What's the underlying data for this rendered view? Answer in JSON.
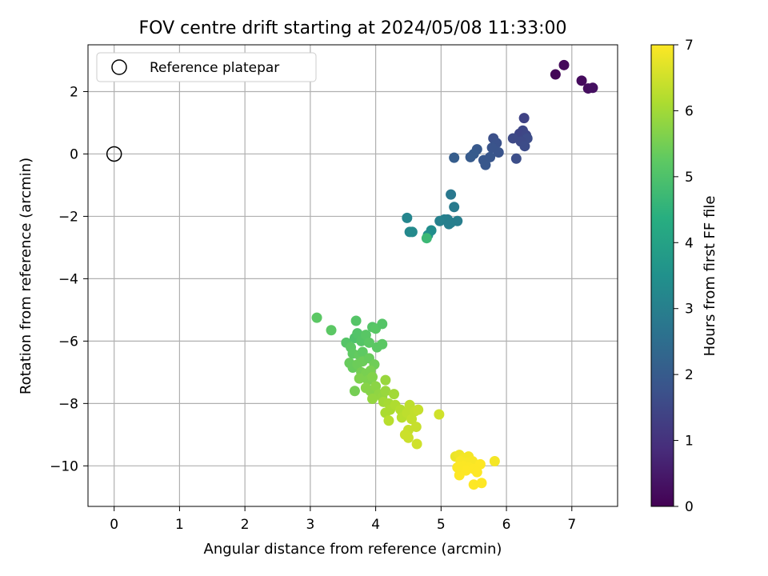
{
  "chart_data": {
    "type": "scatter",
    "title": "FOV centre drift starting at 2024/05/08 11:33:00",
    "xlabel": "Angular distance from reference (arcmin)",
    "ylabel": "Rotation from reference (arcmin)",
    "xlim": [
      -0.4,
      7.7
    ],
    "ylim": [
      -11.3,
      3.5
    ],
    "x_ticks": [
      0,
      1,
      2,
      3,
      4,
      5,
      6,
      7
    ],
    "y_ticks": [
      -10,
      -8,
      -6,
      -4,
      -2,
      0,
      2
    ],
    "grid": true,
    "colormap": "viridis",
    "colorbar_label": "Hours from first FF file",
    "colorbar_range": [
      0,
      7
    ],
    "colorbar_ticks": [
      0,
      1,
      2,
      3,
      4,
      5,
      6,
      7
    ],
    "legend": {
      "placement": "top-left",
      "entries": [
        "Reference platepar"
      ]
    },
    "reference_point": {
      "x": 0,
      "y": 0
    },
    "points": [
      {
        "x": 6.75,
        "y": 2.55,
        "c": 0.1
      },
      {
        "x": 6.88,
        "y": 2.85,
        "c": 0.15
      },
      {
        "x": 7.15,
        "y": 2.35,
        "c": 0.2
      },
      {
        "x": 7.25,
        "y": 2.1,
        "c": 0.25
      },
      {
        "x": 7.32,
        "y": 2.12,
        "c": 0.3
      },
      {
        "x": 6.27,
        "y": 1.15,
        "c": 1.4
      },
      {
        "x": 6.25,
        "y": 0.75,
        "c": 1.5
      },
      {
        "x": 6.2,
        "y": 0.65,
        "c": 1.45
      },
      {
        "x": 6.1,
        "y": 0.5,
        "c": 1.55
      },
      {
        "x": 6.3,
        "y": 0.6,
        "c": 1.5
      },
      {
        "x": 6.32,
        "y": 0.5,
        "c": 1.6
      },
      {
        "x": 6.22,
        "y": 0.4,
        "c": 1.55
      },
      {
        "x": 6.28,
        "y": 0.25,
        "c": 1.6
      },
      {
        "x": 6.15,
        "y": -0.15,
        "c": 1.65
      },
      {
        "x": 5.8,
        "y": 0.5,
        "c": 1.7
      },
      {
        "x": 5.85,
        "y": 0.35,
        "c": 1.75
      },
      {
        "x": 5.78,
        "y": 0.2,
        "c": 1.8
      },
      {
        "x": 5.88,
        "y": 0.05,
        "c": 1.8
      },
      {
        "x": 5.75,
        "y": -0.1,
        "c": 1.85
      },
      {
        "x": 5.65,
        "y": -0.2,
        "c": 1.9
      },
      {
        "x": 5.68,
        "y": -0.35,
        "c": 1.9
      },
      {
        "x": 5.55,
        "y": 0.15,
        "c": 1.95
      },
      {
        "x": 5.5,
        "y": 0.0,
        "c": 2.0
      },
      {
        "x": 5.45,
        "y": -0.1,
        "c": 2.0
      },
      {
        "x": 5.2,
        "y": -0.12,
        "c": 2.05
      },
      {
        "x": 5.15,
        "y": -1.3,
        "c": 2.8
      },
      {
        "x": 5.2,
        "y": -1.7,
        "c": 2.85
      },
      {
        "x": 5.1,
        "y": -2.1,
        "c": 2.9
      },
      {
        "x": 5.15,
        "y": -2.2,
        "c": 2.95
      },
      {
        "x": 5.25,
        "y": -2.15,
        "c": 2.95
      },
      {
        "x": 5.05,
        "y": -2.1,
        "c": 3.0
      },
      {
        "x": 4.98,
        "y": -2.15,
        "c": 3.05
      },
      {
        "x": 5.12,
        "y": -2.25,
        "c": 3.0
      },
      {
        "x": 4.48,
        "y": -2.05,
        "c": 3.15
      },
      {
        "x": 4.52,
        "y": -2.5,
        "c": 3.25
      },
      {
        "x": 4.56,
        "y": -2.5,
        "c": 3.3
      },
      {
        "x": 4.85,
        "y": -2.45,
        "c": 3.4
      },
      {
        "x": 4.8,
        "y": -2.6,
        "c": 3.45
      },
      {
        "x": 4.78,
        "y": -2.7,
        "c": 4.7
      },
      {
        "x": 3.1,
        "y": -5.25,
        "c": 5.2
      },
      {
        "x": 3.32,
        "y": -5.65,
        "c": 5.2
      },
      {
        "x": 3.7,
        "y": -5.35,
        "c": 5.1
      },
      {
        "x": 3.55,
        "y": -6.05,
        "c": 5.1
      },
      {
        "x": 3.68,
        "y": -5.9,
        "c": 5.0
      },
      {
        "x": 3.72,
        "y": -5.75,
        "c": 5.05
      },
      {
        "x": 3.78,
        "y": -6.0,
        "c": 5.1
      },
      {
        "x": 3.85,
        "y": -5.8,
        "c": 5.15
      },
      {
        "x": 3.95,
        "y": -5.55,
        "c": 5.1
      },
      {
        "x": 4.0,
        "y": -5.6,
        "c": 5.15
      },
      {
        "x": 4.1,
        "y": -5.45,
        "c": 5.1
      },
      {
        "x": 3.9,
        "y": -6.05,
        "c": 5.2
      },
      {
        "x": 3.62,
        "y": -6.2,
        "c": 5.2
      },
      {
        "x": 3.65,
        "y": -6.4,
        "c": 5.25
      },
      {
        "x": 3.75,
        "y": -6.45,
        "c": 5.3
      },
      {
        "x": 3.8,
        "y": -6.35,
        "c": 5.25
      },
      {
        "x": 4.02,
        "y": -6.2,
        "c": 5.2
      },
      {
        "x": 4.1,
        "y": -6.1,
        "c": 5.2
      },
      {
        "x": 3.6,
        "y": -6.7,
        "c": 5.35
      },
      {
        "x": 3.65,
        "y": -6.85,
        "c": 5.35
      },
      {
        "x": 3.72,
        "y": -6.75,
        "c": 5.4
      },
      {
        "x": 3.8,
        "y": -6.65,
        "c": 5.4
      },
      {
        "x": 3.9,
        "y": -6.55,
        "c": 5.35
      },
      {
        "x": 3.98,
        "y": -6.75,
        "c": 5.45
      },
      {
        "x": 3.78,
        "y": -7.0,
        "c": 5.5
      },
      {
        "x": 3.85,
        "y": -7.05,
        "c": 5.55
      },
      {
        "x": 3.92,
        "y": -6.95,
        "c": 5.55
      },
      {
        "x": 3.75,
        "y": -7.2,
        "c": 5.6
      },
      {
        "x": 3.88,
        "y": -7.25,
        "c": 5.6
      },
      {
        "x": 3.95,
        "y": -7.15,
        "c": 5.65
      },
      {
        "x": 3.68,
        "y": -7.6,
        "c": 5.5
      },
      {
        "x": 3.85,
        "y": -7.5,
        "c": 5.7
      },
      {
        "x": 3.92,
        "y": -7.6,
        "c": 5.7
      },
      {
        "x": 4.0,
        "y": -7.45,
        "c": 5.75
      },
      {
        "x": 4.05,
        "y": -7.7,
        "c": 5.8
      },
      {
        "x": 3.95,
        "y": -7.85,
        "c": 5.85
      },
      {
        "x": 4.1,
        "y": -7.8,
        "c": 5.85
      },
      {
        "x": 4.15,
        "y": -7.6,
        "c": 5.9
      },
      {
        "x": 4.15,
        "y": -7.25,
        "c": 5.9
      },
      {
        "x": 4.28,
        "y": -7.7,
        "c": 6.0
      },
      {
        "x": 4.12,
        "y": -7.95,
        "c": 6.0
      },
      {
        "x": 4.2,
        "y": -8.0,
        "c": 6.05
      },
      {
        "x": 4.22,
        "y": -8.2,
        "c": 6.1
      },
      {
        "x": 4.15,
        "y": -8.3,
        "c": 6.1
      },
      {
        "x": 4.3,
        "y": -8.05,
        "c": 6.15
      },
      {
        "x": 4.38,
        "y": -8.2,
        "c": 6.2
      },
      {
        "x": 4.4,
        "y": -8.45,
        "c": 6.25
      },
      {
        "x": 4.2,
        "y": -8.55,
        "c": 6.25
      },
      {
        "x": 4.48,
        "y": -8.3,
        "c": 6.3
      },
      {
        "x": 4.52,
        "y": -8.05,
        "c": 6.3
      },
      {
        "x": 4.55,
        "y": -8.5,
        "c": 6.35
      },
      {
        "x": 4.6,
        "y": -8.25,
        "c": 6.35
      },
      {
        "x": 4.62,
        "y": -8.75,
        "c": 6.4
      },
      {
        "x": 4.5,
        "y": -8.85,
        "c": 6.4
      },
      {
        "x": 4.45,
        "y": -9.0,
        "c": 6.45
      },
      {
        "x": 4.5,
        "y": -9.1,
        "c": 6.45
      },
      {
        "x": 4.63,
        "y": -9.3,
        "c": 6.5
      },
      {
        "x": 4.65,
        "y": -8.2,
        "c": 6.4
      },
      {
        "x": 4.97,
        "y": -8.35,
        "c": 6.5
      },
      {
        "x": 5.22,
        "y": -9.7,
        "c": 6.8
      },
      {
        "x": 5.28,
        "y": -9.65,
        "c": 6.85
      },
      {
        "x": 5.35,
        "y": -9.75,
        "c": 6.9
      },
      {
        "x": 5.42,
        "y": -9.7,
        "c": 6.9
      },
      {
        "x": 5.3,
        "y": -9.85,
        "c": 6.95
      },
      {
        "x": 5.4,
        "y": -9.9,
        "c": 6.95
      },
      {
        "x": 5.48,
        "y": -9.85,
        "c": 6.95
      },
      {
        "x": 5.33,
        "y": -10.0,
        "c": 6.98
      },
      {
        "x": 5.43,
        "y": -10.05,
        "c": 6.98
      },
      {
        "x": 5.38,
        "y": -10.15,
        "c": 7.0
      },
      {
        "x": 5.5,
        "y": -10.1,
        "c": 7.0
      },
      {
        "x": 5.28,
        "y": -10.3,
        "c": 7.0
      },
      {
        "x": 5.6,
        "y": -9.95,
        "c": 7.0
      },
      {
        "x": 5.55,
        "y": -10.2,
        "c": 7.0
      },
      {
        "x": 5.5,
        "y": -10.6,
        "c": 7.0
      },
      {
        "x": 5.62,
        "y": -10.55,
        "c": 7.0
      },
      {
        "x": 5.82,
        "y": -9.85,
        "c": 6.9
      },
      {
        "x": 5.25,
        "y": -10.05,
        "c": 6.98
      }
    ]
  }
}
